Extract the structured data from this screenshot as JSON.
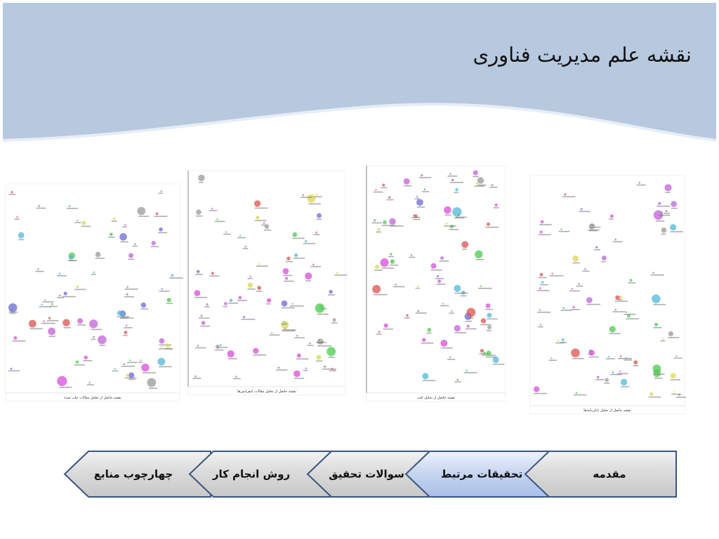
{
  "header": {
    "title": "نقشه علم مدیریت فناوری"
  },
  "maps": [
    {
      "caption": "نقشه حاصل از تحلیل مقالات چاپ شده"
    },
    {
      "caption": "نقشه حاصل از تحلیل مقالات کنفرانس‌ها"
    },
    {
      "caption": "نقشه حاصل از تحلیل کتب"
    },
    {
      "caption": "نقشه حاصل از تحلیل پایان‌نامه‌ها"
    }
  ],
  "nav": {
    "items": [
      "مقدمه",
      "تحقیقات مرتبط",
      "سوالات تحقیق",
      "روش انجام کار",
      "چهارچوب منابع"
    ],
    "active": 1
  }
}
